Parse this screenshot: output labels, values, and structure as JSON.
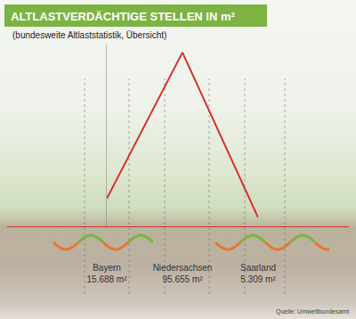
{
  "chart_data": {
    "type": "line",
    "title": "ALTLASTVERDÄCHTIGE STELLEN IN m²",
    "subtitle": "(bundesweite Altlaststatistik, Übersicht)",
    "categories": [
      "Bayern",
      "Niedersachsen",
      "Saarland"
    ],
    "values": [
      15688,
      95655,
      5309
    ],
    "value_labels": [
      "15.688 m²",
      "95.655 m²",
      "5.309 m²"
    ],
    "data_labels": true,
    "color": "#d32f2f",
    "ylim": [
      0,
      100000
    ],
    "grid": false,
    "tick_labels": "x",
    "annotation": "Quelle: Umweltbundesamt"
  }
}
